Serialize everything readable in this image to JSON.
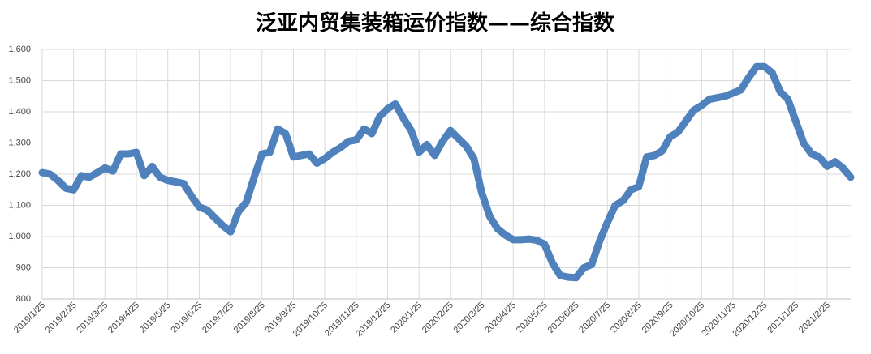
{
  "chart_data": {
    "type": "line",
    "title": "泛亚内贸集装箱运价指数——综合指数",
    "categories": [
      "2019/1/25",
      null,
      null,
      null,
      "2019/2/25",
      null,
      null,
      null,
      "2019/3/25",
      null,
      null,
      null,
      "2019/4/25",
      null,
      null,
      null,
      "2019/5/25",
      null,
      null,
      null,
      "2019/6/25",
      null,
      null,
      null,
      "2019/7/25",
      null,
      null,
      null,
      "2019/8/25",
      null,
      null,
      null,
      "2019/9/25",
      null,
      null,
      null,
      "2019/10/25",
      null,
      null,
      null,
      "2019/11/25",
      null,
      null,
      null,
      "2019/12/25",
      null,
      null,
      null,
      "2020/1/25",
      null,
      null,
      null,
      "2020/2/25",
      null,
      null,
      null,
      "2020/3/25",
      null,
      null,
      null,
      "2020/4/25",
      null,
      null,
      null,
      "2020/5/25",
      null,
      null,
      null,
      "2020/6/25",
      null,
      null,
      null,
      "2020/7/25",
      null,
      null,
      null,
      "2020/8/25",
      null,
      null,
      null,
      "2020/9/25",
      null,
      null,
      null,
      "2020/10/25",
      null,
      null,
      null,
      "2020/11/25",
      null,
      null,
      null,
      "2020/12/25",
      null,
      null,
      null,
      "2021/1/25",
      null,
      null,
      null,
      "2021/2/25",
      null,
      null,
      null
    ],
    "series": [
      {
        "name": "综合指数",
        "color": "#4f81bd",
        "values": [
          1205,
          1200,
          1180,
          1155,
          1150,
          1195,
          1190,
          1205,
          1220,
          1210,
          1265,
          1265,
          1270,
          1195,
          1225,
          1190,
          1180,
          1175,
          1170,
          1130,
          1095,
          1085,
          1060,
          1035,
          1015,
          1080,
          1110,
          1190,
          1265,
          1270,
          1345,
          1330,
          1255,
          1260,
          1265,
          1235,
          1250,
          1270,
          1285,
          1305,
          1310,
          1345,
          1330,
          1385,
          1410,
          1425,
          1380,
          1340,
          1270,
          1295,
          1260,
          1305,
          1340,
          1315,
          1290,
          1250,
          1140,
          1065,
          1025,
          1005,
          990,
          990,
          992,
          988,
          975,
          915,
          875,
          870,
          868,
          900,
          910,
          985,
          1045,
          1100,
          1115,
          1150,
          1160,
          1255,
          1260,
          1275,
          1320,
          1335,
          1370,
          1405,
          1420,
          1440,
          1445,
          1450,
          1460,
          1470,
          1510,
          1545,
          1545,
          1525,
          1465,
          1440,
          1370,
          1300,
          1265,
          1255,
          1225,
          1240,
          1220,
          1190
        ]
      }
    ],
    "ylim": [
      800,
      1600
    ],
    "yticks": [
      800,
      900,
      {
        "value": 1000,
        "label": "1,000"
      },
      {
        "value": 1100,
        "label": "1,100"
      },
      {
        "value": 1200,
        "label": "1,200"
      },
      {
        "value": 1300,
        "label": "1,300"
      },
      {
        "value": 1400,
        "label": "1,400"
      },
      {
        "value": 1500,
        "label": "1,500"
      },
      {
        "value": 1600,
        "label": "1,600"
      }
    ],
    "grid": true
  }
}
